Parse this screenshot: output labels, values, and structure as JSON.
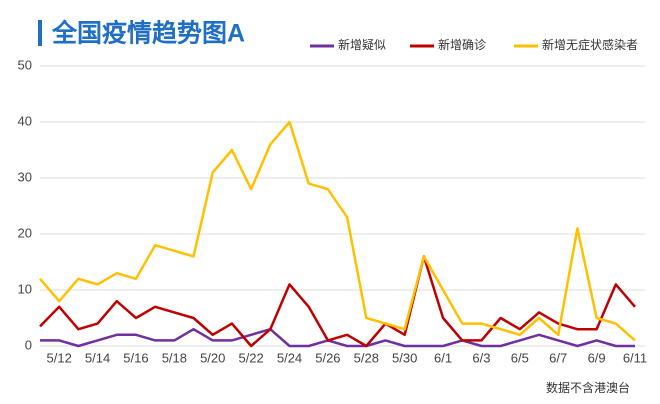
{
  "chart_data": {
    "type": "line",
    "title": "全国疫情趋势图A",
    "note": "数据不含港澳台",
    "categories": [
      null,
      "5/12",
      null,
      "5/14",
      null,
      "5/16",
      null,
      "5/18",
      null,
      "5/20",
      null,
      "5/22",
      null,
      "5/24",
      null,
      "5/26",
      null,
      "5/28",
      null,
      "5/30",
      null,
      "6/1",
      null,
      "6/3",
      null,
      "6/5",
      null,
      "6/7",
      null,
      "6/9",
      null,
      "6/11"
    ],
    "series": [
      {
        "name": "新增疑似",
        "color": "#7030a0",
        "values": [
          1,
          1,
          0,
          1,
          2,
          2,
          1,
          1,
          3,
          1,
          1,
          2,
          3,
          0,
          0,
          1,
          0,
          0,
          1,
          0,
          0,
          0,
          1,
          0,
          0,
          1,
          2,
          1,
          0,
          1,
          0,
          0
        ]
      },
      {
        "name": "新增确诊",
        "color": "#c00000",
        "values": [
          3.5,
          7,
          3,
          4,
          8,
          5,
          7,
          6,
          5,
          2,
          4,
          0,
          3,
          11,
          7,
          1,
          2,
          0,
          4,
          2,
          16,
          5,
          1,
          1,
          5,
          3,
          6,
          4,
          3,
          3,
          11,
          7
        ]
      },
      {
        "name": "新增无症状感染者",
        "color": "#ffc000",
        "values": [
          12,
          8,
          12,
          11,
          13,
          12,
          18,
          17,
          16,
          31,
          35,
          28,
          36,
          40,
          29,
          28,
          23,
          5,
          4,
          3,
          16,
          10,
          4,
          4,
          3,
          2,
          5,
          2,
          21,
          5,
          4,
          1
        ]
      }
    ],
    "ylim": [
      0,
      50
    ],
    "yticks": [
      0,
      10,
      20,
      30,
      40,
      50
    ],
    "grid": true,
    "legend": "top-right"
  }
}
